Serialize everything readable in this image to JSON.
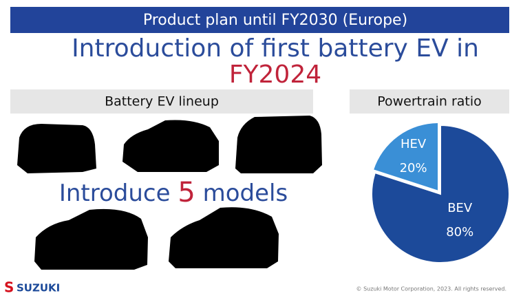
{
  "header": {
    "title": "Product plan until FY2030 (Europe)"
  },
  "headline": {
    "line1": "Introduction of first battery EV in",
    "line2": "FY2024"
  },
  "lineup": {
    "title": "Battery EV lineup",
    "text_before": "Introduce",
    "number": "5",
    "text_after": "models"
  },
  "chart_data": {
    "type": "pie",
    "title": "Powertrain ratio",
    "categories": [
      "HEV",
      "BEV"
    ],
    "values": [
      20,
      80
    ],
    "value_labels": [
      "20%",
      "80%"
    ],
    "colors": [
      "#3a8fd6",
      "#1c4a9a"
    ]
  },
  "footer": {
    "logo": "SUZUKI",
    "copyright": "© Suzuki Motor Corporation, 2023. All rights reserved."
  }
}
